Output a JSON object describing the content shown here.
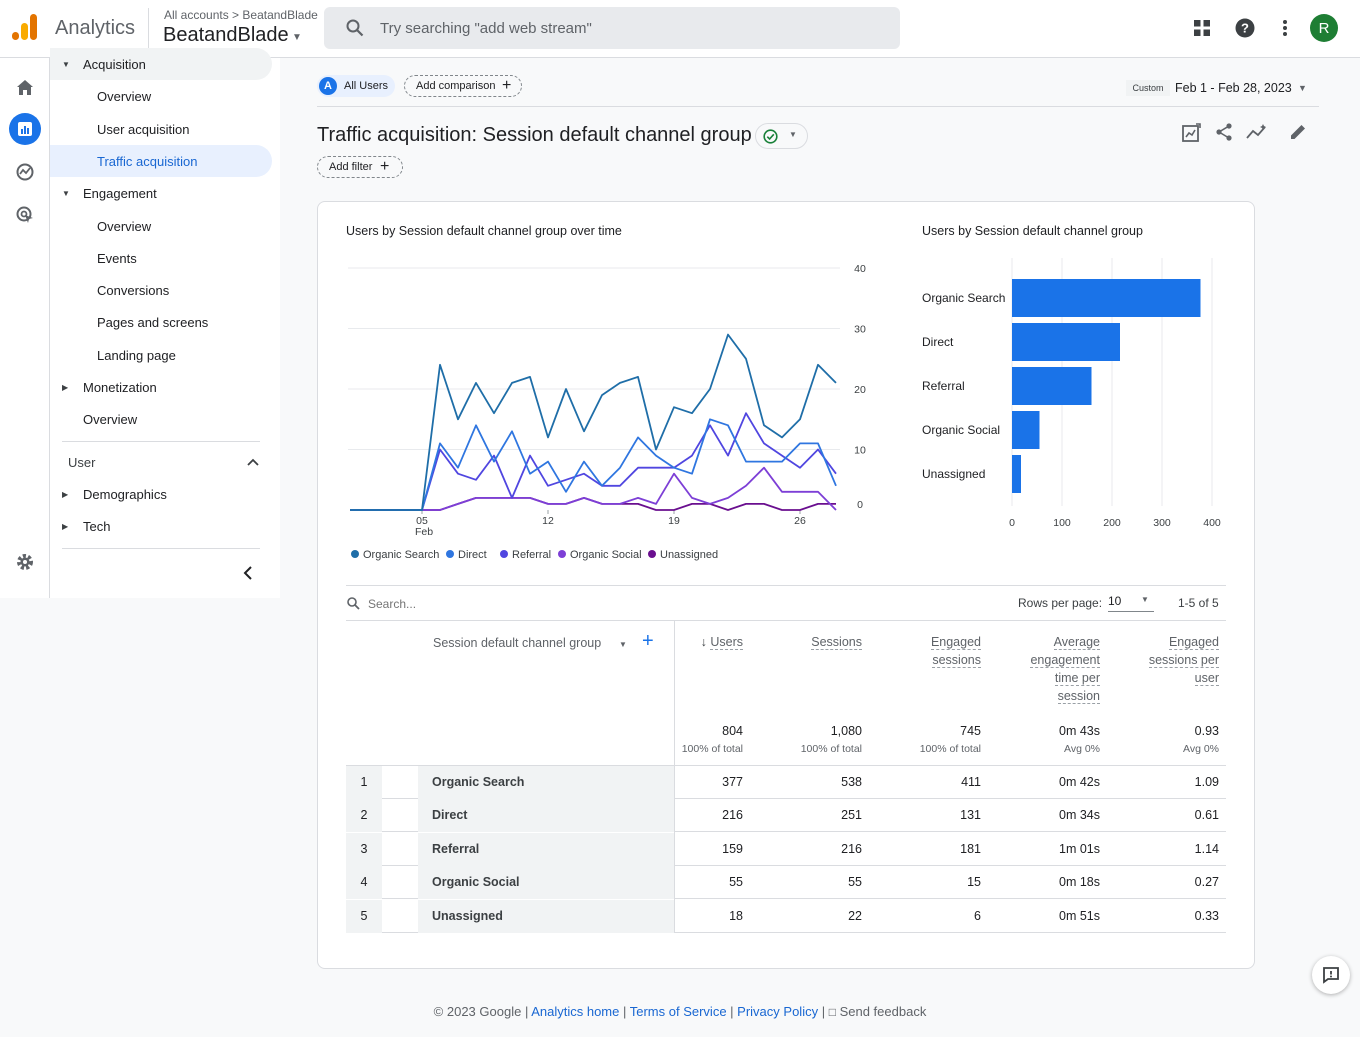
{
  "header": {
    "app_name": "Analytics",
    "breadcrumb_accounts": "All accounts",
    "breadcrumb_account": "BeatandBlade",
    "property": "BeatandBlade",
    "search_placeholder": "Try searching \"add web stream\"",
    "avatar_letter": "R"
  },
  "nav": {
    "acquisition": "Acquisition",
    "acq_overview": "Overview",
    "user_acquisition": "User acquisition",
    "traffic_acquisition": "Traffic acquisition",
    "engagement": "Engagement",
    "eng_overview": "Overview",
    "events": "Events",
    "conversions": "Conversions",
    "pages_screens": "Pages and screens",
    "landing_page": "Landing page",
    "monetization": "Monetization",
    "mon_overview": "Overview",
    "user_section": "User",
    "demographics": "Demographics",
    "tech": "Tech"
  },
  "toolbar": {
    "segment_badge": "A",
    "segment": "All Users",
    "add_comparison": "Add comparison",
    "date_custom": "Custom",
    "date_range": "Feb 1 - Feb 28, 2023"
  },
  "report": {
    "title": "Traffic acquisition: Session default channel group",
    "add_filter": "Add filter"
  },
  "colors": {
    "organic_search": "#1f6ea8",
    "direct": "#2f76e0",
    "referral": "#5046e0",
    "organic_social": "#7d3fd6",
    "unassigned": "#6a0f8f",
    "bar": "#1a73e8"
  },
  "chart_data": [
    {
      "type": "line",
      "title": "Users by Session default channel group over time",
      "x_tick_labels": [
        "05",
        "12",
        "19",
        "26"
      ],
      "x_tick_sublabel": "Feb",
      "ylim": [
        0,
        40
      ],
      "y_ticks": [
        0,
        10,
        20,
        30,
        40
      ],
      "y_axis_side": "right",
      "grid": true,
      "legend_position": "bottom",
      "x": [
        1,
        2,
        3,
        4,
        5,
        6,
        7,
        8,
        9,
        10,
        11,
        12,
        13,
        14,
        15,
        16,
        17,
        18,
        19,
        20,
        21,
        22,
        23,
        24,
        25,
        26,
        27,
        28
      ],
      "series": [
        {
          "name": "Organic Search",
          "values": [
            0,
            0,
            0,
            0,
            0,
            24,
            15,
            21,
            16,
            21,
            22,
            12,
            20,
            13,
            19,
            21,
            22,
            10,
            17,
            16,
            20,
            29,
            25,
            14,
            12,
            15,
            24,
            21
          ]
        },
        {
          "name": "Direct",
          "values": [
            0,
            0,
            0,
            0,
            0,
            11,
            7,
            14,
            8,
            13,
            6,
            8,
            3,
            8,
            4,
            7,
            12,
            9,
            7,
            6,
            15,
            14,
            8,
            8,
            8,
            11,
            11,
            4
          ]
        },
        {
          "name": "Referral",
          "values": [
            0,
            0,
            0,
            0,
            0,
            10,
            6,
            5,
            9,
            2,
            9,
            4,
            5,
            6,
            4,
            4,
            7,
            7,
            7,
            9,
            14,
            9,
            16,
            11,
            9,
            7,
            10,
            6
          ]
        },
        {
          "name": "Organic Social",
          "values": [
            0,
            0,
            0,
            0,
            0,
            0,
            1,
            2,
            2,
            2,
            2,
            1,
            1,
            2,
            1,
            1,
            2,
            1,
            6,
            2,
            1,
            2,
            4,
            7,
            3,
            3,
            3,
            0
          ]
        },
        {
          "name": "Unassigned",
          "values": [
            0,
            0,
            0,
            0,
            0,
            0,
            1,
            2,
            2,
            2,
            2,
            1,
            1,
            2,
            1,
            1,
            1,
            0,
            0,
            1,
            1,
            0,
            1,
            1,
            0,
            0,
            1,
            1
          ]
        }
      ]
    },
    {
      "type": "bar",
      "orientation": "horizontal",
      "title": "Users by Session default channel group",
      "categories": [
        "Organic Search",
        "Direct",
        "Referral",
        "Organic Social",
        "Unassigned"
      ],
      "values": [
        377,
        216,
        159,
        55,
        18
      ],
      "xlim": [
        0,
        400
      ],
      "x_ticks": [
        0,
        100,
        200,
        300,
        400
      ],
      "grid": true
    }
  ],
  "table": {
    "search_placeholder": "Search...",
    "rows_per_page_label": "Rows per page:",
    "rows_per_page": "10",
    "pagination": "1-5 of 5",
    "dimension_header": "Session default channel group",
    "headers": [
      "Users",
      "Sessions",
      "Engaged sessions",
      "Average engagement time per session",
      "Engaged sessions per user"
    ],
    "header_lines": [
      [
        "Users"
      ],
      [
        "Sessions"
      ],
      [
        "Engaged",
        "sessions"
      ],
      [
        "Average",
        "engagement",
        "time per",
        "session"
      ],
      [
        "Engaged",
        "sessions per",
        "user"
      ]
    ],
    "totals": [
      "804",
      "1,080",
      "745",
      "0m 43s",
      "0.93"
    ],
    "totals_sub": [
      "100% of total",
      "100% of total",
      "100% of total",
      "Avg 0%",
      "Avg 0%"
    ],
    "rows": [
      {
        "n": "1",
        "name": "Organic Search",
        "cells": [
          "377",
          "538",
          "411",
          "0m 42s",
          "1.09"
        ]
      },
      {
        "n": "2",
        "name": "Direct",
        "cells": [
          "216",
          "251",
          "131",
          "0m 34s",
          "0.61"
        ]
      },
      {
        "n": "3",
        "name": "Referral",
        "cells": [
          "159",
          "216",
          "181",
          "1m 01s",
          "1.14"
        ]
      },
      {
        "n": "4",
        "name": "Organic Social",
        "cells": [
          "55",
          "55",
          "15",
          "0m 18s",
          "0.27"
        ]
      },
      {
        "n": "5",
        "name": "Unassigned",
        "cells": [
          "18",
          "22",
          "6",
          "0m 51s",
          "0.33"
        ]
      }
    ]
  },
  "footer": {
    "copyright": "© 2023 Google",
    "analytics_home": "Analytics home",
    "terms": "Terms of Service",
    "privacy": "Privacy Policy",
    "send_feedback": "Send feedback"
  }
}
